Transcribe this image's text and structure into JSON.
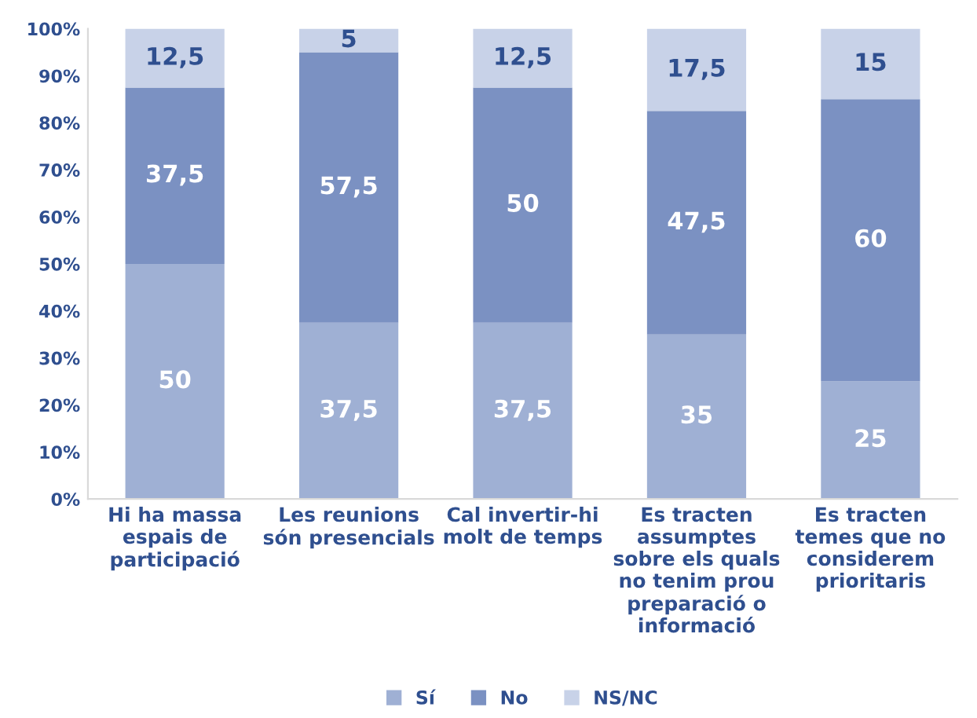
{
  "chart_data": {
    "type": "bar",
    "stacked": true,
    "categories": [
      "Hi ha massa\nespais de\nparticipació",
      "Les reunions\nsón presencials",
      "Cal invertir-hi\nmolt de temps",
      "Es tracten\nassumptes\nsobre els quals\nno tenim prou\npreparació o\ninformació",
      "Es tracten\ntemes que no\nconsiderem\nprioritaris"
    ],
    "series": [
      {
        "name": "Sí",
        "color": "#9fb0d4",
        "values": [
          50,
          37.5,
          37.5,
          35,
          25
        ],
        "value_labels": [
          "50",
          "37,5",
          "37,5",
          "35",
          "25"
        ]
      },
      {
        "name": "No",
        "color": "#7b91c2",
        "values": [
          37.5,
          57.5,
          50,
          47.5,
          60
        ],
        "value_labels": [
          "37,5",
          "57,5",
          "50",
          "47,5",
          "60"
        ]
      },
      {
        "name": "NS/NC",
        "color": "#c8d2e8",
        "values": [
          12.5,
          5,
          12.5,
          17.5,
          15
        ],
        "value_labels": [
          "12,5",
          "5",
          "12,5",
          "17,5",
          "15"
        ]
      }
    ],
    "ylim": [
      0,
      100
    ],
    "yticks": [
      {
        "value": 0,
        "label": "0%"
      },
      {
        "value": 10,
        "label": "10%"
      },
      {
        "value": 20,
        "label": "20%"
      },
      {
        "value": 30,
        "label": "30%"
      },
      {
        "value": 40,
        "label": "40%"
      },
      {
        "value": 50,
        "label": "50%"
      },
      {
        "value": 60,
        "label": "60%"
      },
      {
        "value": 70,
        "label": "70%"
      },
      {
        "value": 80,
        "label": "80%"
      },
      {
        "value": 90,
        "label": "90%"
      },
      {
        "value": 100,
        "label": "100%"
      }
    ],
    "grid": false,
    "legend": "bottom"
  }
}
